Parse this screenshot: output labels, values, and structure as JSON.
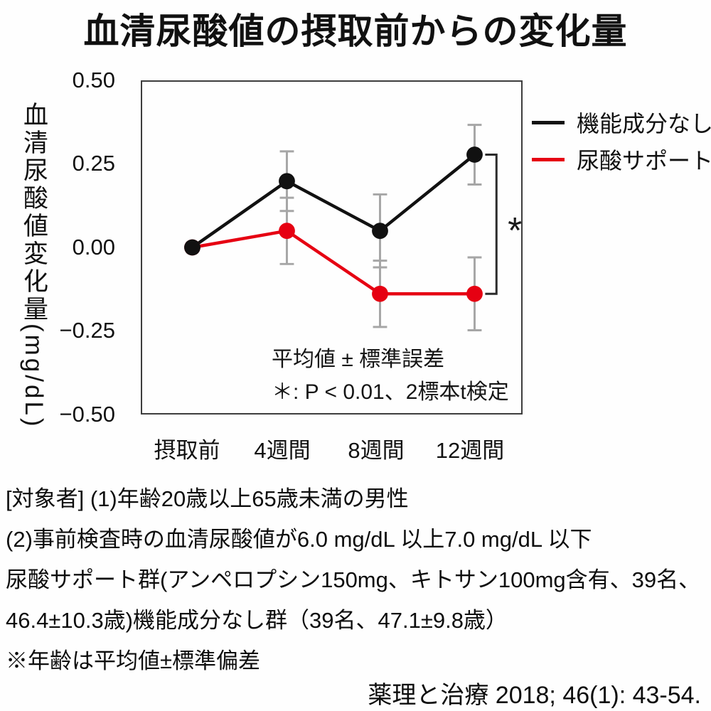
{
  "title": "血清尿酸値の摂取前からの変化量",
  "chart_data": {
    "type": "line",
    "categories": [
      "摂取前",
      "4週間",
      "8週間",
      "12週間"
    ],
    "series": [
      {
        "name": "機能成分なし",
        "color": "#111111",
        "values": [
          0.0,
          0.2,
          0.05,
          0.28
        ],
        "errors": [
          0,
          0.09,
          0.11,
          0.09
        ]
      },
      {
        "name": "尿酸サポート",
        "color": "#e60012",
        "values": [
          0.0,
          0.05,
          -0.14,
          -0.14
        ],
        "errors": [
          0,
          0.1,
          0.1,
          0.11
        ]
      }
    ],
    "ylabel_main": "血清尿酸値変化量",
    "ylabel_unit": "(mg/dL)",
    "ylim": [
      -0.5,
      0.5
    ],
    "yticks": [
      0.5,
      0.25,
      0.0,
      -0.25,
      -0.5
    ],
    "ytick_labels": [
      "0.50",
      "0.25",
      "0.00",
      "−0.25",
      "−0.50"
    ],
    "xlabel": "",
    "grid": false,
    "legend_position": "right",
    "error_color": "#a6a6a6",
    "annotation_lines": [
      "平均値 ± 標準誤差",
      "＊: P < 0.01、2標本t検定"
    ],
    "significance": {
      "symbol": "*",
      "at_index": 3,
      "between_series": [
        0,
        1
      ],
      "meaning": "P < 0.01、2標本t検定"
    }
  },
  "notes": {
    "lines": [
      "[対象者] (1)年齢20歳以上65歳未満の男性",
      "(2)事前検査時の血清尿酸値が6.0 mg/dL 以上7.0 mg/dL 以下",
      "尿酸サポート群(アンペロプシン150mg、キトサン100mg含有、39名、",
      "46.4±10.3歳)機能成分なし群（39名、47.1±9.8歳）",
      "※年齢は平均値±標準偏差"
    ]
  },
  "source": "薬理と治療 2018; 46(1): 43-54."
}
